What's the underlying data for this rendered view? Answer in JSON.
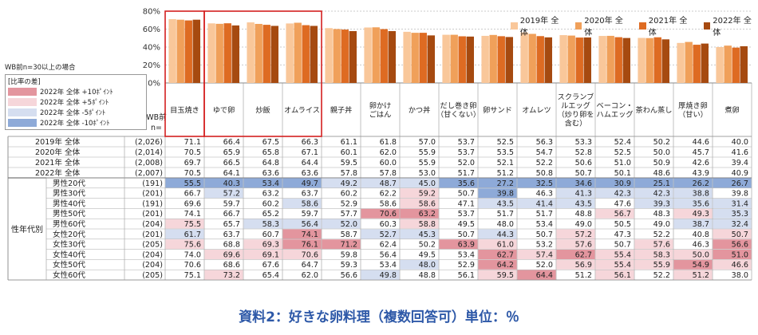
{
  "chart_data": {
    "type": "bar",
    "title": "",
    "xlabel": "",
    "ylabel": "",
    "ylim": [
      0,
      80
    ],
    "yticks": [
      "0%",
      "20%",
      "40%",
      "60%",
      "80%"
    ],
    "grid": true,
    "legend_position": "top-right",
    "categories": [
      "目玉焼き",
      "ゆで卵",
      "炒飯",
      "オムライス",
      "親子丼",
      "卵かけ\nごはん",
      "かつ丼",
      "だし巻き卵\n（甘くない）",
      "卵サンド",
      "オムレツ",
      "スクランブ\nルエッグ\n（炒り卵を\n含む）",
      "ベーコン・\nハムエッグ",
      "茶わん蒸し",
      "厚焼き卵\n（甘い）",
      "煮卵"
    ],
    "series": [
      {
        "name": "2019年 全体",
        "color": "#f9c79a",
        "values": [
          71.1,
          66.4,
          67.5,
          66.3,
          61.1,
          61.8,
          57.0,
          53.7,
          52.5,
          56.3,
          53.3,
          52.4,
          50.2,
          44.6,
          40.0
        ]
      },
      {
        "name": "2020年 全体",
        "color": "#f0a05a",
        "values": [
          70.5,
          65.9,
          65.8,
          67.1,
          60.1,
          62.0,
          55.9,
          53.7,
          53.5,
          54.7,
          52.8,
          52.5,
          50.0,
          45.7,
          41.6
        ]
      },
      {
        "name": "2021年 全体",
        "color": "#de6b22",
        "values": [
          69.7,
          66.5,
          64.8,
          64.4,
          59.5,
          60.0,
          55.9,
          52.0,
          52.1,
          52.2,
          50.6,
          51.0,
          50.9,
          42.6,
          39.4
        ]
      },
      {
        "name": "2022年 全体",
        "color": "#a64a10",
        "values": [
          70.5,
          64.1,
          63.6,
          63.6,
          57.8,
          57.8,
          53.0,
          51.7,
          51.2,
          50.8,
          50.7,
          50.1,
          48.6,
          43.9,
          40.9
        ]
      }
    ],
    "table": {
      "corner_label_1": "WB前",
      "corner_label_2": "n=",
      "group_label": "性年代別",
      "summary_rows": [
        {
          "label": "2019年 全体",
          "n": "(2,026)",
          "values": [
            71.1,
            66.4,
            67.5,
            66.3,
            61.1,
            61.8,
            57.0,
            53.7,
            52.5,
            56.3,
            53.3,
            52.4,
            50.2,
            44.6,
            40.0
          ]
        },
        {
          "label": "2020年 全体",
          "n": "(2,014)",
          "values": [
            70.5,
            65.9,
            65.8,
            67.1,
            60.1,
            62.0,
            55.9,
            53.7,
            53.5,
            54.7,
            52.8,
            52.5,
            50.0,
            45.7,
            41.6
          ]
        },
        {
          "label": "2021年 全体",
          "n": "(2,008)",
          "values": [
            69.7,
            66.5,
            64.8,
            64.4,
            59.5,
            60.0,
            55.9,
            52.0,
            52.1,
            52.2,
            50.6,
            51.0,
            50.9,
            42.6,
            39.4
          ]
        },
        {
          "label": "2022年 全体",
          "n": "(2,007)",
          "values": [
            70.5,
            64.1,
            63.6,
            63.6,
            57.8,
            57.8,
            53.0,
            51.7,
            51.2,
            50.8,
            50.7,
            50.1,
            48.6,
            43.9,
            40.9
          ]
        }
      ],
      "segment_rows": [
        {
          "label": "男性20代",
          "n": "(191)",
          "values": [
            55.5,
            40.3,
            53.4,
            49.7,
            49.2,
            48.7,
            45.0,
            35.6,
            27.2,
            32.5,
            34.6,
            30.9,
            25.1,
            26.2,
            26.7
          ]
        },
        {
          "label": "男性30代",
          "n": "(201)",
          "values": [
            66.7,
            57.2,
            63.2,
            63.7,
            60.2,
            62.2,
            59.2,
            50.7,
            39.8,
            46.3,
            41.3,
            42.3,
            42.3,
            38.8,
            39.8
          ]
        },
        {
          "label": "男性40代",
          "n": "(191)",
          "values": [
            69.6,
            59.7,
            60.2,
            58.6,
            52.9,
            58.6,
            58.6,
            47.1,
            43.5,
            41.4,
            43.5,
            47.6,
            39.3,
            35.6,
            31.4
          ]
        },
        {
          "label": "男性50代",
          "n": "(201)",
          "values": [
            74.1,
            66.7,
            65.2,
            59.7,
            57.7,
            70.6,
            63.2,
            53.7,
            51.7,
            51.7,
            48.8,
            56.7,
            48.3,
            49.3,
            35.3
          ]
        },
        {
          "label": "男性60代",
          "n": "(204)",
          "values": [
            75.5,
            65.7,
            58.3,
            56.4,
            52.0,
            60.3,
            58.8,
            49.5,
            48.0,
            53.4,
            49.0,
            50.5,
            49.0,
            38.7,
            32.4
          ]
        },
        {
          "label": "女性20代",
          "n": "(201)",
          "values": [
            61.7,
            63.7,
            60.7,
            74.1,
            58.7,
            52.7,
            45.3,
            50.7,
            44.3,
            50.7,
            57.2,
            47.3,
            52.2,
            40.8,
            50.7
          ]
        },
        {
          "label": "女性30代",
          "n": "(205)",
          "values": [
            75.6,
            68.8,
            69.3,
            76.1,
            71.2,
            62.4,
            50.2,
            63.9,
            61.0,
            53.2,
            57.6,
            50.7,
            57.6,
            46.3,
            56.6
          ]
        },
        {
          "label": "女性40代",
          "n": "(204)",
          "values": [
            74.0,
            69.6,
            69.1,
            70.6,
            59.8,
            56.4,
            49.5,
            53.4,
            62.7,
            57.4,
            62.7,
            55.4,
            58.3,
            50.0,
            51.0
          ]
        },
        {
          "label": "女性50代",
          "n": "(204)",
          "values": [
            70.6,
            68.6,
            67.6,
            64.7,
            59.3,
            53.4,
            48.0,
            52.9,
            64.2,
            52.0,
            56.9,
            55.4,
            55.9,
            54.9,
            46.6
          ]
        },
        {
          "label": "女性60代",
          "n": "(205)",
          "values": [
            75.1,
            73.2,
            65.4,
            62.0,
            56.6,
            49.8,
            48.8,
            56.1,
            59.5,
            64.4,
            51.2,
            56.1,
            52.2,
            51.2,
            38.0
          ]
        }
      ]
    }
  },
  "notes": {
    "wb_note": "WB前n=30以上の場合",
    "diff_title": "[比率の差]",
    "diff_items": [
      {
        "label": "2022年 全体 +10ﾎﾟｲﾝﾄ",
        "color": "#e3959e"
      },
      {
        "label": "2022年 全体 +5ﾎﾟｲﾝﾄ",
        "color": "#f6d6da"
      },
      {
        "label": "2022年 全体 -5ﾎﾟｲﾝﾄ",
        "color": "#d5def0"
      },
      {
        "label": "2022年 全体 -10ﾎﾟｲﾝﾄ",
        "color": "#8eaad8"
      }
    ]
  },
  "caption": "資料2：好きな卵料理（複数回答可）単位：％"
}
